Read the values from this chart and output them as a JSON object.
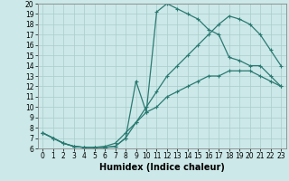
{
  "xlabel": "Humidex (Indice chaleur)",
  "background_color": "#cce8e8",
  "line_color": "#2a7a72",
  "xlim": [
    -0.5,
    23.5
  ],
  "ylim": [
    6,
    20
  ],
  "xticks": [
    0,
    1,
    2,
    3,
    4,
    5,
    6,
    7,
    8,
    9,
    10,
    11,
    12,
    13,
    14,
    15,
    16,
    17,
    18,
    19,
    20,
    21,
    22,
    23
  ],
  "yticks": [
    6,
    7,
    8,
    9,
    10,
    11,
    12,
    13,
    14,
    15,
    16,
    17,
    18,
    19,
    20
  ],
  "line1_x": [
    0,
    1,
    2,
    3,
    4,
    5,
    6,
    7,
    8,
    9,
    10,
    11,
    12,
    13,
    14,
    15,
    16,
    17,
    18,
    19,
    20,
    21,
    22,
    23
  ],
  "line1_y": [
    7.5,
    7.0,
    6.5,
    6.2,
    6.1,
    6.1,
    6.1,
    6.2,
    7.0,
    8.5,
    10.0,
    11.5,
    13.0,
    14.0,
    15.0,
    16.0,
    17.0,
    18.0,
    18.8,
    18.5,
    18.0,
    17.0,
    15.5,
    14.0
  ],
  "line2_x": [
    0,
    1,
    2,
    3,
    4,
    5,
    6,
    7,
    8,
    9,
    10,
    11,
    12,
    13,
    14,
    15,
    16,
    17,
    18,
    19,
    20,
    21,
    22,
    23
  ],
  "line2_y": [
    7.5,
    7.0,
    6.5,
    6.2,
    6.1,
    6.1,
    6.1,
    6.2,
    7.0,
    12.5,
    9.5,
    19.2,
    20.0,
    19.5,
    19.0,
    18.5,
    17.5,
    17.0,
    14.8,
    14.5,
    14.0,
    14.0,
    13.0,
    12.0
  ],
  "line3_x": [
    0,
    1,
    2,
    3,
    4,
    5,
    6,
    7,
    8,
    9,
    10,
    11,
    12,
    13,
    14,
    15,
    16,
    17,
    18,
    19,
    20,
    21,
    22,
    23
  ],
  "line3_y": [
    7.5,
    7.0,
    6.5,
    6.2,
    6.1,
    6.1,
    6.2,
    6.5,
    7.5,
    8.5,
    9.5,
    10.0,
    11.0,
    11.5,
    12.0,
    12.5,
    13.0,
    13.0,
    13.5,
    13.5,
    13.5,
    13.0,
    12.5,
    12.0
  ],
  "grid_color": "#aacccc",
  "marker": "+",
  "markersize": 3,
  "linewidth": 0.9,
  "xlabel_fontsize": 7,
  "tick_fontsize": 5.5
}
